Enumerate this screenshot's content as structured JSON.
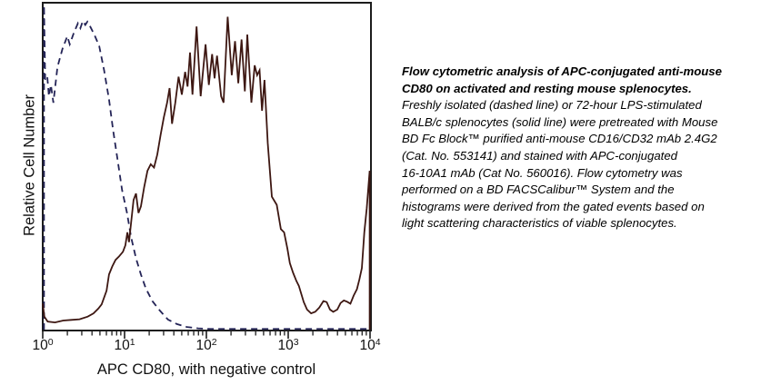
{
  "chart_data": {
    "type": "line",
    "subtype": "flow-cytometry-histogram-overlay",
    "xlabel": "APC CD80, with negative control",
    "ylabel": "Relative Cell Number",
    "x_scale": "log10",
    "x_range": [
      1,
      10000
    ],
    "x_tick_base": "10",
    "x_tick_exponents": [
      "0",
      "1",
      "2",
      "3",
      "4"
    ],
    "y_ticks": "none (relative scale)",
    "grid": "off",
    "legend": "none (line styles described in caption)",
    "axis_color": "#1c1c1c",
    "series": [
      {
        "id": "dashed-negative-control-curve",
        "name": "Freshly isolated splenocytes (dashed line, negative control)",
        "style": "dashed",
        "color": "#242457",
        "points": [
          [
            0.015,
            0.0
          ],
          [
            0.015,
            1.0
          ],
          [
            0.03,
            0.77
          ],
          [
            0.055,
            0.78
          ],
          [
            0.075,
            0.72
          ],
          [
            0.1,
            0.755
          ],
          [
            0.13,
            0.7
          ],
          [
            0.18,
            0.81
          ],
          [
            0.24,
            0.865
          ],
          [
            0.3,
            0.905
          ],
          [
            0.33,
            0.88
          ],
          [
            0.38,
            0.915
          ],
          [
            0.43,
            0.945
          ],
          [
            0.46,
            0.93
          ],
          [
            0.49,
            0.952
          ],
          [
            0.52,
            0.94
          ],
          [
            0.545,
            0.95
          ],
          [
            0.58,
            0.935
          ],
          [
            0.63,
            0.91
          ],
          [
            0.69,
            0.875
          ],
          [
            0.75,
            0.8
          ],
          [
            0.81,
            0.71
          ],
          [
            0.86,
            0.615
          ],
          [
            0.92,
            0.515
          ],
          [
            0.97,
            0.43
          ],
          [
            1.03,
            0.36
          ],
          [
            1.08,
            0.285
          ],
          [
            1.14,
            0.22
          ],
          [
            1.2,
            0.17
          ],
          [
            1.26,
            0.127
          ],
          [
            1.34,
            0.088
          ],
          [
            1.43,
            0.059
          ],
          [
            1.53,
            0.031
          ],
          [
            1.64,
            0.017
          ],
          [
            1.76,
            0.008
          ],
          [
            1.9,
            0.004
          ],
          [
            2.05,
            0.002
          ],
          [
            4.0,
            0.002
          ]
        ]
      },
      {
        "id": "solid-lps-stimulated-curve",
        "name": "72-hour LPS-stimulated BALB/c splenocytes (solid line)",
        "style": "solid",
        "color": "#3d1712",
        "points": [
          [
            0.0,
            0.08
          ],
          [
            0.02,
            0.04
          ],
          [
            0.06,
            0.025
          ],
          [
            0.15,
            0.022
          ],
          [
            0.25,
            0.028
          ],
          [
            0.35,
            0.03
          ],
          [
            0.45,
            0.032
          ],
          [
            0.55,
            0.04
          ],
          [
            0.62,
            0.05
          ],
          [
            0.68,
            0.065
          ],
          [
            0.72,
            0.078
          ],
          [
            0.78,
            0.12
          ],
          [
            0.81,
            0.17
          ],
          [
            0.85,
            0.195
          ],
          [
            0.89,
            0.215
          ],
          [
            0.93,
            0.225
          ],
          [
            0.98,
            0.24
          ],
          [
            1.01,
            0.26
          ],
          [
            1.035,
            0.3
          ],
          [
            1.055,
            0.27
          ],
          [
            1.08,
            0.33
          ],
          [
            1.11,
            0.4
          ],
          [
            1.14,
            0.42
          ],
          [
            1.17,
            0.36
          ],
          [
            1.2,
            0.38
          ],
          [
            1.24,
            0.44
          ],
          [
            1.28,
            0.49
          ],
          [
            1.32,
            0.51
          ],
          [
            1.36,
            0.5
          ],
          [
            1.4,
            0.54
          ],
          [
            1.44,
            0.6
          ],
          [
            1.48,
            0.655
          ],
          [
            1.52,
            0.7
          ],
          [
            1.55,
            0.745
          ],
          [
            1.58,
            0.635
          ],
          [
            1.62,
            0.7
          ],
          [
            1.66,
            0.78
          ],
          [
            1.7,
            0.725
          ],
          [
            1.74,
            0.795
          ],
          [
            1.77,
            0.75
          ],
          [
            1.8,
            0.855
          ],
          [
            1.83,
            0.725
          ],
          [
            1.88,
            0.935
          ],
          [
            1.93,
            0.72
          ],
          [
            1.99,
            0.88
          ],
          [
            2.03,
            0.755
          ],
          [
            2.07,
            0.85
          ],
          [
            2.1,
            0.775
          ],
          [
            2.13,
            0.845
          ],
          [
            2.18,
            0.72
          ],
          [
            2.21,
            0.7
          ],
          [
            2.26,
            0.965
          ],
          [
            2.31,
            0.785
          ],
          [
            2.35,
            0.89
          ],
          [
            2.39,
            0.76
          ],
          [
            2.43,
            0.895
          ],
          [
            2.47,
            0.735
          ],
          [
            2.5,
            0.91
          ],
          [
            2.55,
            0.7
          ],
          [
            2.59,
            0.815
          ],
          [
            2.62,
            0.785
          ],
          [
            2.65,
            0.8
          ],
          [
            2.68,
            0.675
          ],
          [
            2.71,
            0.77
          ],
          [
            2.75,
            0.575
          ],
          [
            2.8,
            0.41
          ],
          [
            2.86,
            0.385
          ],
          [
            2.91,
            0.31
          ],
          [
            2.95,
            0.3
          ],
          [
            2.99,
            0.25
          ],
          [
            3.02,
            0.205
          ],
          [
            3.06,
            0.175
          ],
          [
            3.1,
            0.15
          ],
          [
            3.13,
            0.135
          ],
          [
            3.16,
            0.11
          ],
          [
            3.19,
            0.085
          ],
          [
            3.23,
            0.062
          ],
          [
            3.28,
            0.05
          ],
          [
            3.33,
            0.055
          ],
          [
            3.38,
            0.068
          ],
          [
            3.43,
            0.088
          ],
          [
            3.47,
            0.085
          ],
          [
            3.51,
            0.062
          ],
          [
            3.55,
            0.055
          ],
          [
            3.6,
            0.062
          ],
          [
            3.64,
            0.082
          ],
          [
            3.68,
            0.09
          ],
          [
            3.72,
            0.086
          ],
          [
            3.76,
            0.08
          ],
          [
            3.8,
            0.105
          ],
          [
            3.84,
            0.125
          ],
          [
            3.87,
            0.155
          ],
          [
            3.9,
            0.19
          ],
          [
            3.93,
            0.3
          ],
          [
            3.96,
            0.375
          ],
          [
            3.98,
            0.44
          ],
          [
            3.995,
            0.49
          ],
          [
            3.995,
            0.0
          ]
        ]
      }
    ]
  },
  "caption": {
    "title_lines": [
      "Flow cytometric analysis of APC-conjugated anti-mouse",
      "CD80 on activated and resting mouse splenocytes."
    ],
    "body_lines": [
      "Freshly isolated (dashed line) or 72-hour LPS-stimulated",
      "BALB/c splenocytes (solid line) were pretreated with Mouse",
      "BD Fc Block™ purified anti-mouse CD16/CD32 mAb 2.4G2",
      "(Cat. No. 553141) and stained with APC-conjugated",
      "16-10A1 mAb (Cat No. 560016). Flow cytometry was",
      "performed on a BD FACSCalibur™ System and the",
      "histograms were derived from the gated events based on",
      "light scattering characteristics of viable splenocytes."
    ]
  }
}
